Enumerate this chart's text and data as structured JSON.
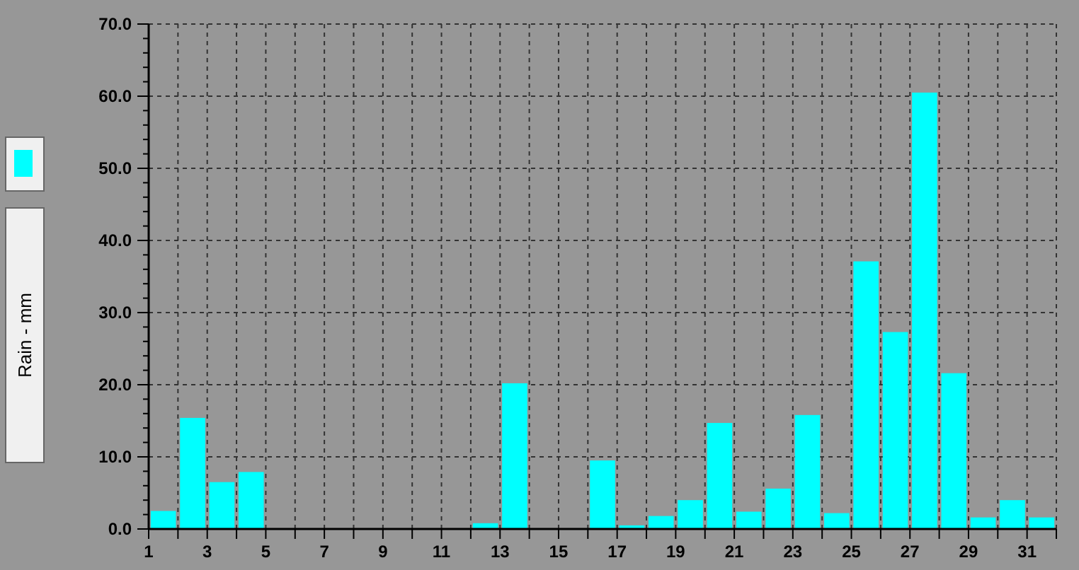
{
  "chart_data": {
    "type": "bar",
    "ylabel": "Rain - mm",
    "x": [
      1.5,
      2.5,
      3.5,
      4.5,
      5.5,
      6.5,
      7.5,
      8.5,
      9.5,
      10.5,
      11.5,
      12.5,
      13.5,
      14.5,
      15.5,
      16.5,
      17.5,
      18.5,
      19.5,
      20.5,
      21.5,
      22.5,
      23.5,
      24.5,
      25.5,
      26.5,
      27.5,
      28.5,
      29.5,
      30.5,
      31.5
    ],
    "series": [
      {
        "color": "#00ffff",
        "values": [
          2.5,
          15.4,
          6.5,
          7.9,
          0,
          0,
          0,
          0,
          0,
          0,
          0,
          0.8,
          20.2,
          0,
          0,
          9.5,
          0.5,
          1.8,
          4.0,
          14.7,
          2.4,
          5.6,
          15.8,
          2.2,
          37.1,
          27.3,
          60.5,
          21.6,
          1.6,
          4.0,
          1.6
        ]
      }
    ],
    "xlim": [
      1,
      32
    ],
    "xticks": [
      1,
      {
        "value": 2,
        "label": null
      },
      3,
      {
        "value": 4,
        "label": null
      },
      5,
      {
        "value": 6,
        "label": null
      },
      7,
      {
        "value": 8,
        "label": null
      },
      9,
      {
        "value": 10,
        "label": null
      },
      11,
      {
        "value": 12,
        "label": null
      },
      13,
      {
        "value": 14,
        "label": null
      },
      15,
      {
        "value": 16,
        "label": null
      },
      17,
      {
        "value": 18,
        "label": null
      },
      19,
      {
        "value": 20,
        "label": null
      },
      21,
      {
        "value": 22,
        "label": null
      },
      23,
      {
        "value": 24,
        "label": null
      },
      25,
      {
        "value": 26,
        "label": null
      },
      27,
      {
        "value": 28,
        "label": null
      },
      29,
      {
        "value": 30,
        "label": null
      },
      31,
      {
        "value": 32,
        "label": null
      }
    ],
    "ylim": [
      0,
      70
    ],
    "yticks": [
      {
        "value": 0,
        "label": "0.0"
      },
      {
        "value": 10,
        "label": "10.0"
      },
      {
        "value": 20,
        "label": "20.0"
      },
      {
        "value": 30,
        "label": "30.0"
      },
      {
        "value": 40,
        "label": "40.0"
      },
      {
        "value": 50,
        "label": "50.0"
      },
      {
        "value": 60,
        "label": "60.0"
      },
      {
        "value": 70,
        "label": "70.0"
      }
    ],
    "grid": true
  }
}
